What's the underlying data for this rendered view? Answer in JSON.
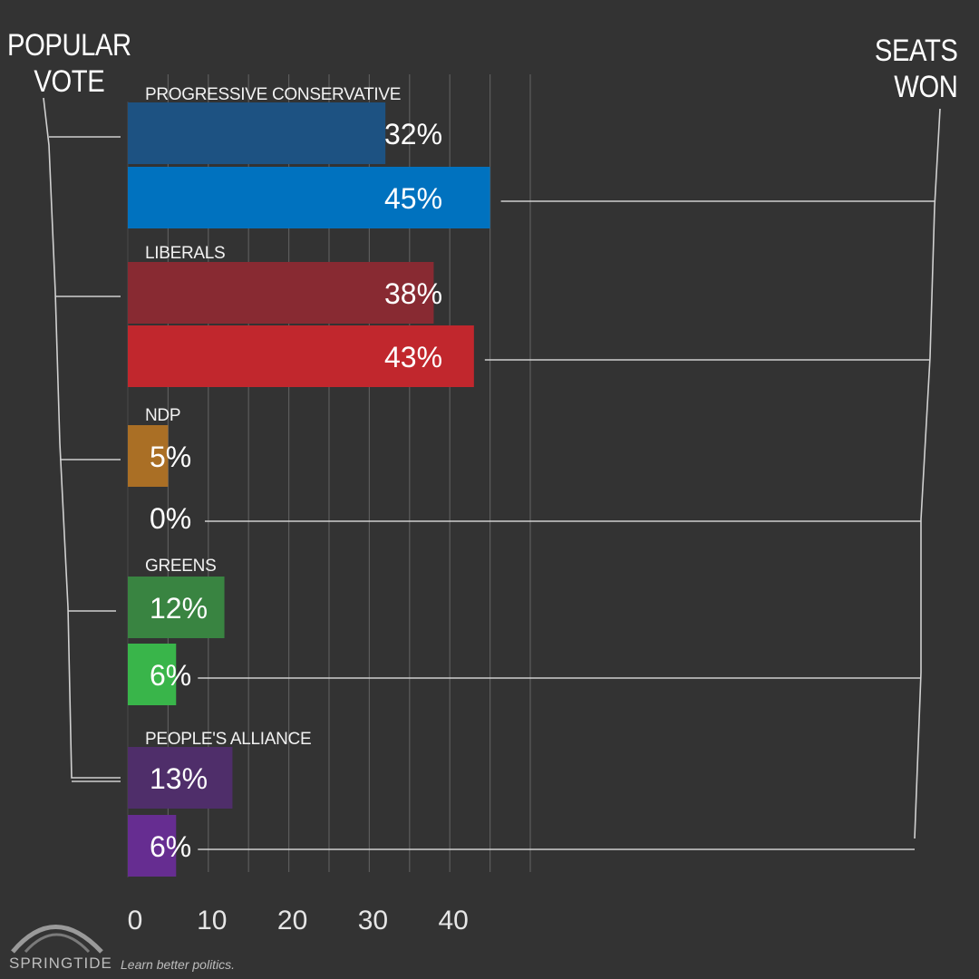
{
  "titles": {
    "popular_vote_line1": "POPULAR",
    "popular_vote_line2": "VOTE",
    "seats_won_line1": "SEATS",
    "seats_won_line2": "WON"
  },
  "footer": {
    "brand": "SPRINGTIDE",
    "tagline": "Learn better politics."
  },
  "chart_data": {
    "type": "bar",
    "orientation": "horizontal",
    "xlim": [
      0,
      50
    ],
    "x_ticks": [
      0,
      10,
      20,
      30,
      40
    ],
    "grid": true,
    "series_roles": [
      "POPULAR VOTE",
      "SEATS WON"
    ],
    "parties": [
      {
        "name": "PROGRESSIVE CONSERVATIVE",
        "popular_vote": {
          "value": 32,
          "label": "32%",
          "color": "#1d5282"
        },
        "seats_won": {
          "value": 45,
          "label": "45%",
          "color": "#0072bf"
        }
      },
      {
        "name": "LIBERALS",
        "popular_vote": {
          "value": 38,
          "label": "38%",
          "color": "#882a32"
        },
        "seats_won": {
          "value": 43,
          "label": "43%",
          "color": "#c1272d"
        }
      },
      {
        "name": "NDP",
        "popular_vote": {
          "value": 5,
          "label": "5%",
          "color": "#aa6f25"
        },
        "seats_won": {
          "value": 0,
          "label": "0%",
          "color": "#f7931e"
        }
      },
      {
        "name": "GREENS",
        "popular_vote": {
          "value": 12,
          "label": "12%",
          "color": "#398441"
        },
        "seats_won": {
          "value": 6,
          "label": "6%",
          "color": "#39b54a"
        }
      },
      {
        "name": "PEOPLE'S ALLIANCE",
        "popular_vote": {
          "value": 13,
          "label": "13%",
          "color": "#4f2e6a"
        },
        "seats_won": {
          "value": 6,
          "label": "6%",
          "color": "#662d91"
        }
      }
    ]
  }
}
